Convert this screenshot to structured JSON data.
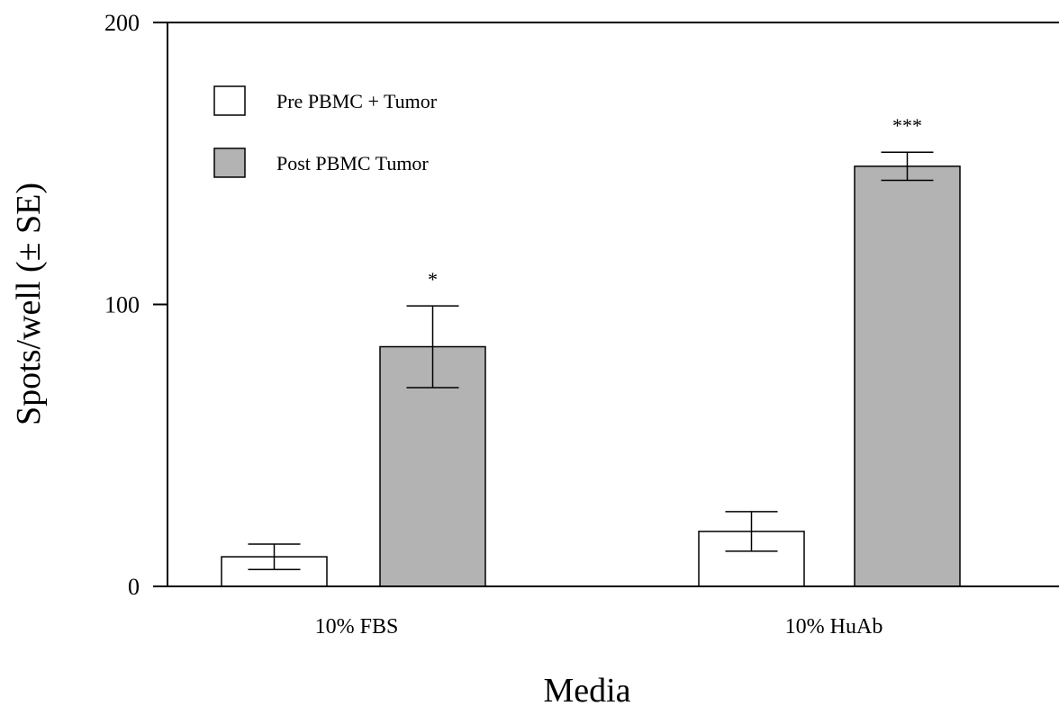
{
  "chart_data": {
    "type": "bar",
    "title": "",
    "xlabel": "Media",
    "ylabel": "Spots/well (± SE)",
    "ylim": [
      0,
      200
    ],
    "yticks": [
      0,
      100,
      200
    ],
    "categories": [
      "10% FBS",
      "10% HuAb"
    ],
    "series": [
      {
        "name": "Pre PBMC + Tumor",
        "color": "#ffffff",
        "values": [
          10.5,
          19.5
        ],
        "errors": [
          4.5,
          7
        ]
      },
      {
        "name": "Post PBMC Tumor",
        "color": "#b3b3b3",
        "values": [
          85,
          149
        ],
        "errors": [
          14.5,
          5
        ]
      }
    ],
    "annotations": [
      {
        "category": 0,
        "series": 1,
        "text": "*"
      },
      {
        "category": 1,
        "series": 1,
        "text": "***"
      }
    ],
    "legend_position": "top-left",
    "grid": false
  }
}
